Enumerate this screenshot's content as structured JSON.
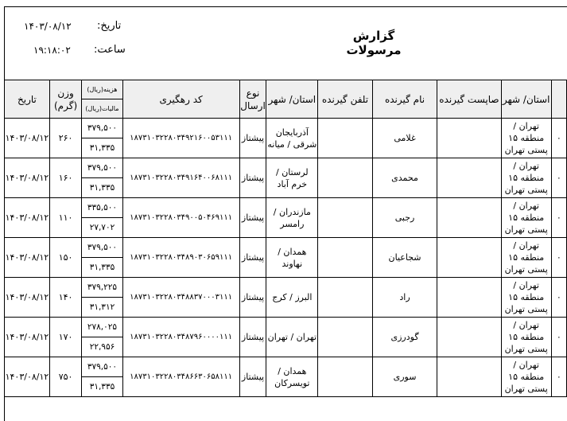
{
  "report": {
    "title": "گزارش مرسولات",
    "date_label": "تاریخ:",
    "date_value": "۱۴۰۳/۰۸/۱۲",
    "time_label": "ساعت:",
    "time_value": "۱۹:۱۸:۰۲"
  },
  "table": {
    "headers": {
      "date": "تاریخ",
      "weight": "وزن (گرم)",
      "cost": "هزینه(ریال)",
      "tax": "مالیات(ریال)",
      "tracking": "کد رهگیری",
      "type": "نوع ارسال",
      "dest": "استان/ شهر",
      "phone": "تلفن گیرنده",
      "name": "نام گیرنده",
      "postcode": "صاپست گیرنده",
      "origin": "استان/ شهر"
    },
    "rows": [
      {
        "date": "۱۴۰۳/۰۸/۱۲",
        "weight": "۲۶۰",
        "cost": "۳۷۹,۵۰۰",
        "tax": "۳۱,۳۳۵",
        "tracking": "۱۸۷۳۱۰۳۲۲۸۰۳۴۹۲۱۶۰۰۵۳۱۱۱",
        "type": "پیشتاز",
        "dest": "آذربایجان شرقی / میانه",
        "phone": "",
        "name": "غلامی",
        "postcode": "",
        "origin": "تهران / منطقه ۱۵ پستی تهران",
        "cut": "۰"
      },
      {
        "date": "۱۴۰۳/۰۸/۱۲",
        "weight": "۱۶۰",
        "cost": "۳۷۹,۵۰۰",
        "tax": "۳۱,۳۳۵",
        "tracking": "۱۸۷۳۱۰۳۲۲۸۰۳۴۹۱۶۴۰۰۶۸۱۱۱",
        "type": "پیشتاز",
        "dest": "لرستان / خرم آباد",
        "phone": "",
        "name": "محمدی",
        "postcode": "",
        "origin": "تهران / منطقه ۱۵ پستی تهران",
        "cut": "۰"
      },
      {
        "date": "۱۴۰۳/۰۸/۱۲",
        "weight": "۱۱۰",
        "cost": "۳۳۵,۵۰۰",
        "tax": "۲۷,۷۰۲",
        "tracking": "۱۸۷۳۱۰۳۲۲۸۰۳۴۹۰۰۵۰۴۶۹۱۱۱",
        "type": "پیشتاز",
        "dest": "مازندران / رامسر",
        "phone": "",
        "name": "رجبی",
        "postcode": "",
        "origin": "تهران / منطقه ۱۵ پستی تهران",
        "cut": "۰"
      },
      {
        "date": "۱۴۰۳/۰۸/۱۲",
        "weight": "۱۵۰",
        "cost": "۳۷۹,۵۰۰",
        "tax": "۳۱,۳۳۵",
        "tracking": "۱۸۷۳۱۰۳۲۲۸۰۳۴۸۹۰۳۰۶۵۹۱۱۱",
        "type": "پیشتاز",
        "dest": "همدان / نهاوند",
        "phone": "",
        "name": "شجاعیان",
        "postcode": "",
        "origin": "تهران / منطقه ۱۵ پستی تهران",
        "cut": "۰"
      },
      {
        "date": "۱۴۰۳/۰۸/۱۲",
        "weight": "۱۴۰",
        "cost": "۳۷۹,۲۲۵",
        "tax": "۳۱,۳۱۲",
        "tracking": "۱۸۷۳۱۰۳۲۲۸۰۳۴۸۸۳۷۰۰۰۳۱۱۱",
        "type": "پیشتاز",
        "dest": "البرز / کرج",
        "phone": "",
        "name": "راد",
        "postcode": "",
        "origin": "تهران / منطقه ۱۵ پستی تهران",
        "cut": "۰"
      },
      {
        "date": "۱۴۰۳/۰۸/۱۲",
        "weight": "۱۷۰",
        "cost": "۲۷۸,۰۲۵",
        "tax": "۲۲,۹۵۶",
        "tracking": "۱۸۷۳۱۰۳۲۲۸۰۳۴۸۷۹۶۰۰۰۰۱۱۱",
        "type": "پیشتاز",
        "dest": "تهران / تهران",
        "phone": "",
        "name": "گودرزی",
        "postcode": "",
        "origin": "تهران / منطقه ۱۵ پستی تهران",
        "cut": "۰"
      },
      {
        "date": "۱۴۰۳/۰۸/۱۲",
        "weight": "۷۵۰",
        "cost": "۳۷۹,۵۰۰",
        "tax": "۳۱,۳۳۵",
        "tracking": "۱۸۷۳۱۰۳۲۲۸۰۳۴۸۶۶۳۰۶۵۸۱۱۱",
        "type": "پیشتاز",
        "dest": "همدان / تویسرکان",
        "phone": "",
        "name": "سوری",
        "postcode": "",
        "origin": "تهران / منطقه ۱۵ پستی تهران",
        "cut": "۰"
      }
    ]
  }
}
